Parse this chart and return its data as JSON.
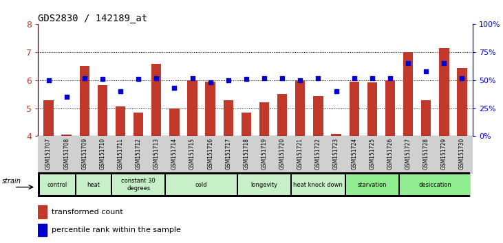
{
  "title": "GDS2830 / 142189_at",
  "samples": [
    "GSM151707",
    "GSM151708",
    "GSM151709",
    "GSM151710",
    "GSM151711",
    "GSM151712",
    "GSM151713",
    "GSM151714",
    "GSM151715",
    "GSM151716",
    "GSM151717",
    "GSM151718",
    "GSM151719",
    "GSM151720",
    "GSM151721",
    "GSM151722",
    "GSM151723",
    "GSM151724",
    "GSM151725",
    "GSM151726",
    "GSM151727",
    "GSM151728",
    "GSM151729",
    "GSM151730"
  ],
  "bar_values": [
    5.28,
    4.05,
    6.52,
    5.82,
    5.05,
    4.85,
    6.58,
    5.0,
    6.0,
    5.95,
    5.28,
    4.83,
    5.2,
    5.5,
    6.0,
    5.42,
    4.07,
    5.95,
    5.92,
    6.0,
    7.0,
    5.28,
    7.15,
    6.45
  ],
  "percentile_values": [
    50,
    35,
    52,
    51,
    40,
    51,
    52,
    43,
    52,
    48,
    50,
    51,
    52,
    52,
    50,
    52,
    40,
    52,
    52,
    52,
    65,
    58,
    65,
    52
  ],
  "groups": [
    {
      "label": "control",
      "start": 0,
      "end": 2,
      "color": "#c8f0c8"
    },
    {
      "label": "heat",
      "start": 2,
      "end": 4,
      "color": "#c8f0c8"
    },
    {
      "label": "constant 30\ndegrees",
      "start": 4,
      "end": 7,
      "color": "#c8f0c8"
    },
    {
      "label": "cold",
      "start": 7,
      "end": 11,
      "color": "#c8f0c8"
    },
    {
      "label": "longevity",
      "start": 11,
      "end": 14,
      "color": "#c8f0c8"
    },
    {
      "label": "heat knock down",
      "start": 14,
      "end": 17,
      "color": "#c8f0c8"
    },
    {
      "label": "starvation",
      "start": 17,
      "end": 20,
      "color": "#90ee90"
    },
    {
      "label": "desiccation",
      "start": 20,
      "end": 24,
      "color": "#90ee90"
    }
  ],
  "ylim_left": [
    4,
    8
  ],
  "ylim_right": [
    0,
    100
  ],
  "yticks_left": [
    4,
    5,
    6,
    7,
    8
  ],
  "yticks_right": [
    0,
    25,
    50,
    75,
    100
  ],
  "ytick_right_labels": [
    "0%",
    "25%",
    "50%",
    "75%",
    "100%"
  ],
  "bar_color": "#c0392b",
  "dot_color": "#0000cc",
  "bar_bottom": 4.0,
  "grid_lines": [
    5,
    6,
    7
  ]
}
